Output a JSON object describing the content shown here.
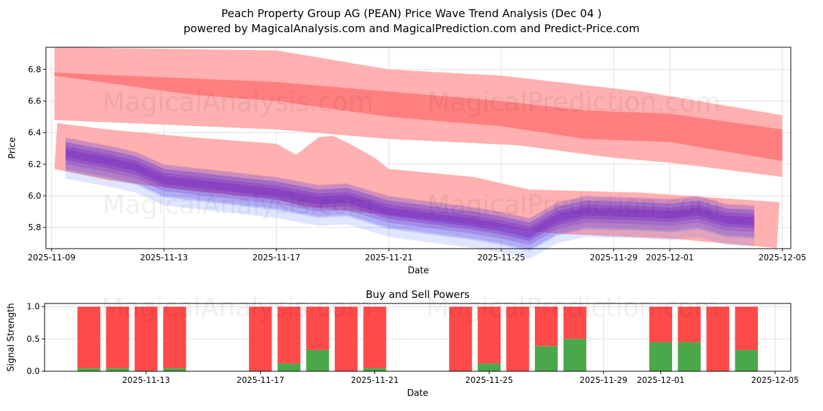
{
  "title_line1": "Peach Property Group AG (PEAN) Price Wave Trend Analysis (Dec 04 )",
  "title_line2": "powered by MagicalAnalysis.com and MagicalPrediction.com and Predict-Price.com",
  "watermarks": [
    "MagicalAnalysis.com",
    "MagicalPrediction.com"
  ],
  "colors": {
    "band_light": "#ffb0b0",
    "band_dark": "#ff7f7f",
    "wave_purple": "#7a2fc0",
    "wave_blue": "#3355ff",
    "buy": "#4aa84a",
    "sell": "#ff4a4a"
  },
  "chart_data": [
    {
      "type": "area",
      "title": "",
      "xlabel": "Date",
      "ylabel": "Price",
      "x_origin": "2025-11-09",
      "xlim_days": [
        -0.2,
        26.3
      ],
      "ylim": [
        5.666,
        6.94
      ],
      "xticks": [
        {
          "day": 0,
          "label": "2025-11-09"
        },
        {
          "day": 4,
          "label": "2025-11-13"
        },
        {
          "day": 8,
          "label": "2025-11-17"
        },
        {
          "day": 12,
          "label": "2025-11-21"
        },
        {
          "day": 16,
          "label": "2025-11-25"
        },
        {
          "day": 20,
          "label": "2025-11-29"
        },
        {
          "day": 22,
          "label": "2025-12-01"
        },
        {
          "day": 26,
          "label": "2025-12-05"
        }
      ],
      "yticks": [
        5.8,
        6.0,
        6.2,
        6.4,
        6.6,
        6.8
      ],
      "ytick_labels": [
        "5.8",
        "6.0",
        "6.2",
        "6.4",
        "6.6",
        "6.8"
      ],
      "grid": true,
      "bands": [
        {
          "name": "upper-band-outer",
          "color": "#ffb0b0",
          "upper": [
            [
              0.1,
              6.94
            ],
            [
              8,
              6.92
            ],
            [
              12,
              6.8
            ],
            [
              16,
              6.76
            ],
            [
              21,
              6.66
            ],
            [
              22,
              6.63
            ],
            [
              26,
              6.51
            ]
          ],
          "lower": [
            [
              0.1,
              6.48
            ],
            [
              8,
              6.42
            ],
            [
              12,
              6.36
            ],
            [
              16.6,
              6.32
            ],
            [
              20,
              6.24
            ],
            [
              22,
              6.21
            ],
            [
              26,
              6.12
            ]
          ]
        },
        {
          "name": "upper-band-inner",
          "color": "#ff7f7f",
          "upper": [
            [
              0.1,
              6.78
            ],
            [
              4,
              6.75
            ],
            [
              8,
              6.72
            ],
            [
              12,
              6.66
            ],
            [
              16,
              6.6
            ],
            [
              19,
              6.54
            ],
            [
              22,
              6.52
            ],
            [
              26,
              6.42
            ]
          ],
          "lower": [
            [
              0.1,
              6.76
            ],
            [
              5,
              6.64
            ],
            [
              8,
              6.6
            ],
            [
              12,
              6.5
            ],
            [
              16,
              6.44
            ],
            [
              19,
              6.36
            ],
            [
              22,
              6.34
            ],
            [
              26,
              6.22
            ]
          ]
        },
        {
          "name": "lower-band-outer",
          "color": "#ffb0b0",
          "upper": [
            [
              0.2,
              6.46
            ],
            [
              2,
              6.42
            ],
            [
              5,
              6.37
            ],
            [
              8,
              6.33
            ],
            [
              8.7,
              6.26
            ],
            [
              9.5,
              6.37
            ],
            [
              10,
              6.38
            ],
            [
              10.6,
              6.33
            ],
            [
              11.5,
              6.24
            ],
            [
              12,
              6.17
            ],
            [
              15,
              6.12
            ],
            [
              17,
              6.04
            ],
            [
              21,
              6.02
            ],
            [
              25.9,
              5.96
            ]
          ],
          "lower": [
            [
              0.1,
              6.17
            ],
            [
              2,
              6.1
            ],
            [
              5,
              6.03
            ],
            [
              8,
              5.98
            ],
            [
              9,
              5.93
            ],
            [
              12,
              5.88
            ],
            [
              16,
              5.8
            ],
            [
              18,
              5.76
            ],
            [
              22,
              5.73
            ],
            [
              25.8,
              5.67
            ]
          ]
        }
      ],
      "wave_center": [
        [
          0.5,
          6.27
        ],
        [
          2,
          6.22
        ],
        [
          3,
          6.18
        ],
        [
          4,
          6.1
        ],
        [
          6,
          6.06
        ],
        [
          8,
          6.02
        ],
        [
          9.5,
          5.97
        ],
        [
          10.5,
          5.98
        ],
        [
          12,
          5.9
        ],
        [
          15,
          5.83
        ],
        [
          16,
          5.8
        ],
        [
          17,
          5.76
        ],
        [
          18,
          5.86
        ],
        [
          19,
          5.9
        ],
        [
          21,
          5.89
        ],
        [
          22,
          5.88
        ],
        [
          23,
          5.9
        ],
        [
          24,
          5.85
        ],
        [
          25,
          5.84
        ]
      ]
    },
    {
      "type": "bar",
      "title": "Buy and Sell Powers",
      "xlabel": "Date",
      "ylabel": "Signal Strength",
      "x_origin": "2025-11-09",
      "xlim_days": [
        0.45,
        26.55
      ],
      "ylim": [
        0,
        1.05
      ],
      "xticks": [
        {
          "day": 4,
          "label": "2025-11-13"
        },
        {
          "day": 8,
          "label": "2025-11-17"
        },
        {
          "day": 12,
          "label": "2025-11-21"
        },
        {
          "day": 16,
          "label": "2025-11-25"
        },
        {
          "day": 20,
          "label": "2025-11-29"
        },
        {
          "day": 22,
          "label": "2025-12-01"
        },
        {
          "day": 26,
          "label": "2025-12-05"
        }
      ],
      "yticks": [
        0,
        0.5,
        1.0
      ],
      "ytick_labels": [
        "0.0",
        "0.5",
        "1.0"
      ],
      "grid": true,
      "categories": [
        "2025-11-11",
        "2025-11-12",
        "2025-11-13",
        "2025-11-14",
        "2025-11-17",
        "2025-11-18",
        "2025-11-19",
        "2025-11-20",
        "2025-11-21",
        "2025-11-24",
        "2025-11-25",
        "2025-11-26",
        "2025-11-27",
        "2025-11-28",
        "2025-12-01",
        "2025-12-02",
        "2025-12-03",
        "2025-12-04"
      ],
      "days": [
        2,
        3,
        4,
        5,
        8,
        9,
        10,
        11,
        12,
        15,
        16,
        17,
        18,
        19,
        22,
        23,
        24,
        25
      ],
      "series": [
        {
          "name": "Buy",
          "color": "#4aa84a",
          "values": [
            0.05,
            0.05,
            0,
            0.05,
            0,
            0.12,
            0.33,
            0,
            0.05,
            0,
            0.12,
            0,
            0.39,
            0.5,
            0.45,
            0.45,
            0,
            0.33
          ]
        },
        {
          "name": "Sell",
          "color": "#ff4a4a",
          "values": [
            0.95,
            0.95,
            1,
            0.95,
            1,
            0.88,
            0.67,
            1,
            0.95,
            1,
            0.88,
            1,
            0.61,
            0.5,
            0.55,
            0.55,
            1,
            0.67
          ]
        }
      ]
    }
  ]
}
